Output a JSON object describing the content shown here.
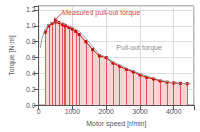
{
  "chart_data": {
    "type": "line",
    "xlabel": "Motor speed [r/min]",
    "ylabel": "Torque [N·m]",
    "xlim": [
      0,
      4600
    ],
    "ylim": [
      0,
      1.25
    ],
    "xticks": [
      0,
      1000,
      2000,
      3000,
      4000
    ],
    "yticks": [
      {
        "value": 0.0,
        "label": "0.0"
      },
      0.2,
      0.4,
      0.6,
      0.8,
      {
        "value": 1.0,
        "label": "1.0"
      },
      1.2
    ],
    "grid": true,
    "series": [
      {
        "type": "line",
        "color": "#cc0000",
        "fill_color": "#fad4d4",
        "stem_color": "#cc0000",
        "marker": "square",
        "x": [
          200,
          300,
          400,
          500,
          600,
          700,
          750,
          800,
          900,
          1000,
          1100,
          1200,
          1400,
          1600,
          1800,
          2000,
          2200,
          2400,
          2600,
          2800,
          3000,
          3200,
          3400,
          3600,
          3800,
          4000,
          4200,
          4400
        ],
        "values": [
          0.92,
          1.0,
          1.03,
          1.05,
          1.04,
          1.02,
          1.01,
          1.0,
          0.98,
          0.96,
          0.93,
          0.89,
          0.8,
          0.7,
          0.62,
          0.6,
          0.53,
          0.49,
          0.45,
          0.42,
          0.38,
          0.35,
          0.33,
          0.305,
          0.29,
          0.28,
          0.275,
          0.27
        ]
      },
      {
        "type": "line",
        "color": "#999999",
        "marker": "none",
        "x": [
          50,
          100,
          200,
          300,
          400,
          500,
          600,
          700,
          800,
          900,
          1000,
          1200,
          1400,
          1600,
          1800,
          2000,
          2200,
          2400,
          2600,
          2800,
          3000,
          3200,
          3400,
          3600,
          3800,
          4000,
          4200,
          4400,
          4500
        ],
        "values": [
          0.72,
          0.84,
          0.97,
          1.01,
          1.04,
          1.055,
          1.04,
          1.025,
          1.01,
          0.995,
          0.975,
          0.93,
          0.84,
          0.74,
          0.64,
          0.605,
          0.545,
          0.505,
          0.465,
          0.435,
          0.395,
          0.365,
          0.34,
          0.315,
          0.295,
          0.28,
          0.275,
          0.27,
          0.268
        ]
      }
    ],
    "annotations": [
      {
        "text": "Measured pull-out torque",
        "x": 700,
        "y": 1.17,
        "arrow_to": [
          450,
          1.055
        ],
        "color": "#cc0000"
      },
      {
        "text": "Pull-out torque",
        "x": 2300,
        "y": 0.73,
        "color": "#666666"
      }
    ]
  }
}
